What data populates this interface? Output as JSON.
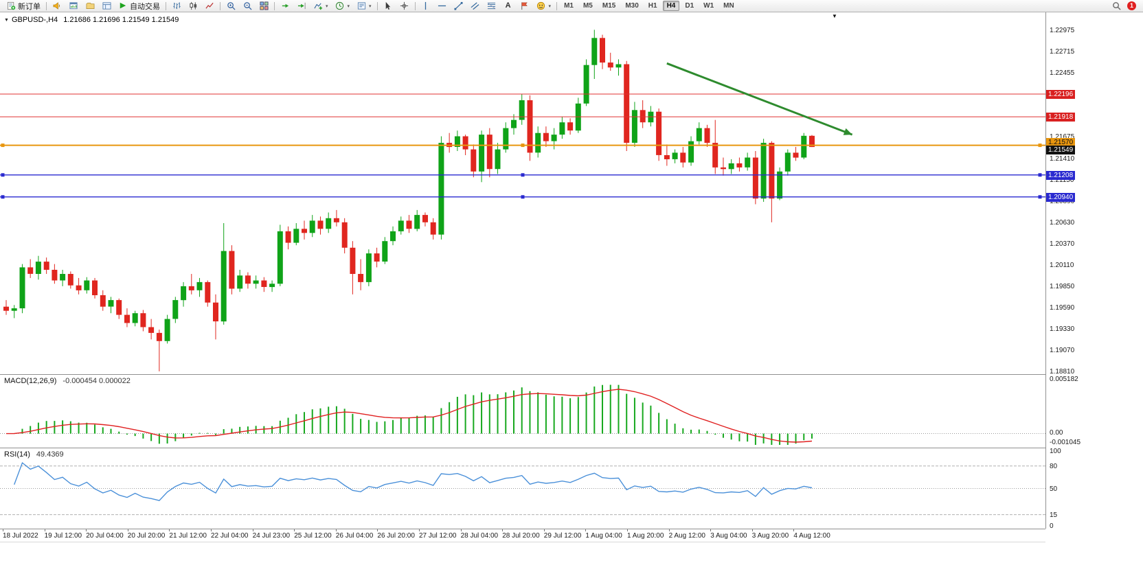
{
  "toolbar": {
    "new_order_label": "新订单",
    "auto_trading_label": "自动交易",
    "notification_count": "1",
    "timeframes": [
      "M1",
      "M5",
      "M15",
      "M30",
      "H1",
      "H4",
      "D1",
      "W1",
      "MN"
    ],
    "active_timeframe": "H4",
    "items": [
      {
        "type": "button",
        "name": "new-order-button",
        "icon": "new-order-icon",
        "label": "新订单"
      },
      {
        "type": "sep"
      },
      {
        "type": "button",
        "name": "news-button",
        "icon": "horn-icon"
      },
      {
        "type": "button",
        "name": "chart-window-button",
        "icon": "chart-window-icon"
      },
      {
        "type": "button",
        "name": "profiles-button",
        "icon": "profiles-icon"
      },
      {
        "type": "button",
        "name": "terminal-button",
        "icon": "terminal-icon"
      },
      {
        "type": "button",
        "name": "auto-trading-button",
        "icon": "play-icon",
        "label": "自动交易"
      },
      {
        "type": "sep"
      },
      {
        "type": "button",
        "name": "ohlc-bars-button",
        "icon": "ohlc-bars-icon"
      },
      {
        "type": "button",
        "name": "candlestick-button",
        "icon": "candles-icon"
      },
      {
        "type": "button",
        "name": "line-chart-button",
        "icon": "line-chart-icon"
      },
      {
        "type": "sep"
      },
      {
        "type": "button",
        "name": "zoom-in-button",
        "icon": "zoom-in-icon"
      },
      {
        "type": "button",
        "name": "zoom-out-button",
        "icon": "zoom-out-icon"
      },
      {
        "type": "button",
        "name": "tile-windows-button",
        "icon": "tile-windows-icon"
      },
      {
        "type": "sep"
      },
      {
        "type": "button",
        "name": "auto-scroll-button",
        "icon": "auto-scroll-icon"
      },
      {
        "type": "button",
        "name": "chart-shift-button",
        "icon": "chart-shift-icon"
      },
      {
        "type": "button",
        "name": "indicators-button",
        "icon": "indicators-icon",
        "dropdown": true
      },
      {
        "type": "button",
        "name": "periods-button",
        "icon": "clock-icon",
        "dropdown": true
      },
      {
        "type": "button",
        "name": "templates-button",
        "icon": "template-icon",
        "dropdown": true
      },
      {
        "type": "sep"
      },
      {
        "type": "button",
        "name": "cursor-button",
        "icon": "cursor-icon"
      },
      {
        "type": "button",
        "name": "crosshair-button",
        "icon": "crosshair-icon"
      },
      {
        "type": "sep"
      },
      {
        "type": "button",
        "name": "vertical-line-button",
        "icon": "vline-icon"
      },
      {
        "type": "button",
        "name": "horizontal-line-button",
        "icon": "hline-icon"
      },
      {
        "type": "button",
        "name": "trendline-button",
        "icon": "trendline-icon"
      },
      {
        "type": "button",
        "name": "channel-button",
        "icon": "channel-icon"
      },
      {
        "type": "button",
        "name": "fibonacci-button",
        "icon": "fibo-icon"
      },
      {
        "type": "button",
        "name": "text-button",
        "icon": "text-icon"
      },
      {
        "type": "button",
        "name": "label-button",
        "icon": "label-icon"
      },
      {
        "type": "button",
        "name": "shapes-button",
        "icon": "shapes-icon",
        "dropdown": true
      },
      {
        "type": "sep"
      }
    ]
  },
  "chart": {
    "title": "GBPUSD-,H4",
    "ohlc": "1.21686 1.21696 1.21549 1.21549",
    "price_axis": [
      "1.22975",
      "1.22715",
      "1.22455",
      "1.21675",
      "1.21410",
      "1.21150",
      "1.20890",
      "1.20630",
      "1.20370",
      "1.20110",
      "1.19850",
      "1.19590",
      "1.19330",
      "1.19070",
      "1.18810"
    ],
    "price_labels": [
      {
        "text": "1.22196",
        "price": 1.22196,
        "bg": "#d92020",
        "fg": "#ffffff",
        "dy": 0
      },
      {
        "text": "1.21918",
        "price": 1.21918,
        "bg": "#d92020",
        "fg": "#ffffff",
        "dy": 0
      },
      {
        "text": "1.21570",
        "price": 1.2157,
        "bg": "#e8960f",
        "fg": "#111111",
        "dy": -5
      },
      {
        "text": "1.21549",
        "price": 1.21549,
        "bg": "#111111",
        "fg": "#ffffff",
        "dy": 4
      },
      {
        "text": "1.21208",
        "price": 1.21208,
        "bg": "#2a2ad0",
        "fg": "#ffffff",
        "dy": 0
      },
      {
        "text": "1.20940",
        "price": 1.2094,
        "bg": "#2a2ad0",
        "fg": "#ffffff",
        "dy": 0
      }
    ]
  },
  "chart_data": {
    "type": "candlestick",
    "symbol": "GBPUSD-",
    "period": "H4",
    "y_range": [
      1.18776,
      1.23193
    ],
    "x0": 9,
    "bar_step": 11.73,
    "candles": [
      [
        1.196,
        1.1968,
        1.195,
        1.1955
      ],
      [
        1.1955,
        1.1962,
        1.1946,
        1.1958
      ],
      [
        1.1958,
        1.2012,
        1.1952,
        1.2008
      ],
      [
        1.2008,
        1.2018,
        1.1995,
        1.2
      ],
      [
        1.2,
        1.2022,
        1.1993,
        1.2015
      ],
      [
        1.2015,
        1.202,
        1.2,
        1.2005
      ],
      [
        1.2005,
        1.2012,
        1.1988,
        1.1992
      ],
      [
        1.1992,
        1.2005,
        1.1985,
        1.2
      ],
      [
        1.2,
        1.2003,
        1.1982,
        1.1986
      ],
      [
        1.1986,
        1.1995,
        1.1975,
        1.198
      ],
      [
        1.198,
        1.1996,
        1.1976,
        1.1992
      ],
      [
        1.1992,
        1.1995,
        1.197,
        1.1974
      ],
      [
        1.1974,
        1.198,
        1.1955,
        1.196
      ],
      [
        1.196,
        1.1972,
        1.1952,
        1.1968
      ],
      [
        1.1968,
        1.197,
        1.1945,
        1.195
      ],
      [
        1.195,
        1.1958,
        1.1935,
        1.194
      ],
      [
        1.194,
        1.1955,
        1.1936,
        1.1952
      ],
      [
        1.1952,
        1.1956,
        1.193,
        1.1935
      ],
      [
        1.1935,
        1.1945,
        1.192,
        1.1928
      ],
      [
        1.1928,
        1.1932,
        1.1881,
        1.1918
      ],
      [
        1.1918,
        1.195,
        1.1915,
        1.1945
      ],
      [
        1.1945,
        1.1972,
        1.194,
        1.1968
      ],
      [
        1.1968,
        1.199,
        1.196,
        1.1985
      ],
      [
        1.1985,
        1.2,
        1.1975,
        1.198
      ],
      [
        1.198,
        1.1995,
        1.1972,
        1.199
      ],
      [
        1.199,
        1.1992,
        1.196,
        1.1965
      ],
      [
        1.1965,
        1.1975,
        1.192,
        1.1942
      ],
      [
        1.1942,
        1.2062,
        1.1938,
        1.2028
      ],
      [
        1.2028,
        1.2035,
        1.1975,
        1.1982
      ],
      [
        1.1982,
        1.2005,
        1.1978,
        1.1998
      ],
      [
        1.1998,
        1.2002,
        1.1982,
        1.1988
      ],
      [
        1.1988,
        1.1998,
        1.1982,
        1.1992
      ],
      [
        1.1992,
        1.1996,
        1.1978,
        1.1984
      ],
      [
        1.1984,
        1.1992,
        1.1978,
        1.1988
      ],
      [
        1.1988,
        1.206,
        1.1985,
        1.2052
      ],
      [
        1.2052,
        1.2058,
        1.203,
        1.2038
      ],
      [
        1.2038,
        1.2062,
        1.2035,
        1.2055
      ],
      [
        1.2055,
        1.2065,
        1.2042,
        1.205
      ],
      [
        1.205,
        1.2072,
        1.2045,
        1.2065
      ],
      [
        1.2065,
        1.207,
        1.2048,
        1.2055
      ],
      [
        1.2055,
        1.2075,
        1.205,
        1.2068
      ],
      [
        1.2068,
        1.2078,
        1.2058,
        1.2063
      ],
      [
        1.2063,
        1.2068,
        1.2025,
        1.2032
      ],
      [
        1.2032,
        1.204,
        1.1975,
        1.2
      ],
      [
        1.2,
        1.2018,
        1.198,
        1.199
      ],
      [
        1.199,
        1.203,
        1.1985,
        1.2025
      ],
      [
        1.2025,
        1.2032,
        1.2008,
        1.2015
      ],
      [
        1.2015,
        1.2045,
        1.2012,
        1.204
      ],
      [
        1.204,
        1.2058,
        1.2035,
        1.2052
      ],
      [
        1.2052,
        1.207,
        1.2048,
        1.2065
      ],
      [
        1.2065,
        1.2072,
        1.205,
        1.2055
      ],
      [
        1.2055,
        1.2078,
        1.2052,
        1.2072
      ],
      [
        1.2072,
        1.2075,
        1.2058,
        1.2063
      ],
      [
        1.2063,
        1.2068,
        1.2042,
        1.2048
      ],
      [
        1.2048,
        1.2168,
        1.2042,
        1.216
      ],
      [
        1.216,
        1.2172,
        1.2148,
        1.2155
      ],
      [
        1.2155,
        1.2175,
        1.215,
        1.2168
      ],
      [
        1.2168,
        1.217,
        1.2145,
        1.2152
      ],
      [
        1.2152,
        1.2158,
        1.2118,
        1.2125
      ],
      [
        1.2125,
        1.2175,
        1.2112,
        1.217
      ],
      [
        1.217,
        1.2178,
        1.2118,
        1.2128
      ],
      [
        1.2128,
        1.216,
        1.2122,
        1.2152
      ],
      [
        1.2152,
        1.2185,
        1.2148,
        1.2178
      ],
      [
        1.2178,
        1.2195,
        1.217,
        1.2188
      ],
      [
        1.2188,
        1.222,
        1.2182,
        1.2212
      ],
      [
        1.2212,
        1.2218,
        1.2138,
        1.2148
      ],
      [
        1.2148,
        1.218,
        1.2142,
        1.2172
      ],
      [
        1.2172,
        1.218,
        1.2155,
        1.2162
      ],
      [
        1.2162,
        1.2178,
        1.2152,
        1.217
      ],
      [
        1.217,
        1.2192,
        1.2165,
        1.2185
      ],
      [
        1.2185,
        1.219,
        1.217,
        1.2175
      ],
      [
        1.2175,
        1.2215,
        1.2172,
        1.2208
      ],
      [
        1.2208,
        1.2262,
        1.2205,
        1.2255
      ],
      [
        1.2255,
        1.2298,
        1.2238,
        1.2288
      ],
      [
        1.2288,
        1.2292,
        1.225,
        1.2258
      ],
      [
        1.2258,
        1.227,
        1.2248,
        1.2252
      ],
      [
        1.2252,
        1.2262,
        1.2242,
        1.2256
      ],
      [
        1.2256,
        1.226,
        1.215,
        1.216
      ],
      [
        1.216,
        1.221,
        1.2155,
        1.22
      ],
      [
        1.22,
        1.2212,
        1.2178,
        1.2185
      ],
      [
        1.2185,
        1.2205,
        1.218,
        1.2198
      ],
      [
        1.2198,
        1.2202,
        1.2138,
        1.2145
      ],
      [
        1.2145,
        1.2158,
        1.2132,
        1.214
      ],
      [
        1.214,
        1.2152,
        1.2135,
        1.2148
      ],
      [
        1.2148,
        1.2155,
        1.213,
        1.2136
      ],
      [
        1.2136,
        1.2168,
        1.2132,
        1.2162
      ],
      [
        1.2162,
        1.2185,
        1.2158,
        1.2178
      ],
      [
        1.2178,
        1.2182,
        1.2155,
        1.216
      ],
      [
        1.216,
        1.2188,
        1.2122,
        1.213
      ],
      [
        1.213,
        1.2142,
        1.212,
        1.2128
      ],
      [
        1.2128,
        1.214,
        1.2122,
        1.2135
      ],
      [
        1.2135,
        1.2142,
        1.2125,
        1.213
      ],
      [
        1.213,
        1.2148,
        1.2126,
        1.2142
      ],
      [
        1.2142,
        1.215,
        1.2085,
        1.2092
      ],
      [
        1.2092,
        1.2165,
        1.2088,
        1.216
      ],
      [
        1.216,
        1.2162,
        1.2063,
        1.2092
      ],
      [
        1.2092,
        1.213,
        1.209,
        1.2125
      ],
      [
        1.2125,
        1.2152,
        1.212,
        1.2148
      ],
      [
        1.2148,
        1.2155,
        1.2138,
        1.2142
      ],
      [
        1.2142,
        1.2172,
        1.214,
        1.21686
      ],
      [
        1.21686,
        1.21696,
        1.21549,
        1.21549
      ]
    ],
    "hlines": [
      {
        "price": 1.22196,
        "color": "red_line",
        "w": 1
      },
      {
        "price": 1.21918,
        "color": "red_line",
        "w": 1
      },
      {
        "price": 1.2157,
        "color": "orange_line",
        "w": 2,
        "handles": true
      },
      {
        "price": 1.21208,
        "color": "blue_line",
        "w": 1.4,
        "handles": true
      },
      {
        "price": 1.2094,
        "color": "blue_line",
        "w": 1.4,
        "handles": true
      }
    ],
    "trend_arrow": {
      "from_bar": 82,
      "from_price": 1.2257,
      "to_bar": 105,
      "to_price": 1.217
    }
  },
  "macd": {
    "label": "MACD(12,26,9)",
    "values": "-0.000454 0.000022",
    "axis": [
      "0.005182",
      "0.00",
      "-0.001045"
    ],
    "range": [
      -0.001045,
      0.005182
    ],
    "params": {
      "fast": 12,
      "slow": 26,
      "signal": 9
    }
  },
  "rsi": {
    "label": "RSI(14)",
    "value": "49.4369",
    "axis": [
      "100",
      "80",
      "50",
      "15",
      "0"
    ],
    "levels": [
      80,
      50,
      15
    ],
    "period": 14
  },
  "time_axis": {
    "x0": 4,
    "step": 60.6,
    "labels": [
      "18 Jul 2022",
      "19 Jul 12:00",
      "20 Jul 04:00",
      "20 Jul 20:00",
      "21 Jul 12:00",
      "22 Jul 04:00",
      "24 Jul 23:00",
      "25 Jul 12:00",
      "26 Jul 04:00",
      "26 Jul 20:00",
      "27 Jul 12:00",
      "28 Jul 04:00",
      "28 Jul 20:00",
      "29 Jul 12:00",
      "1 Aug 04:00",
      "1 Aug 20:00",
      "2 Aug 12:00",
      "3 Aug 04:00",
      "3 Aug 20:00",
      "4 Aug 12:00"
    ]
  },
  "colors": {
    "up": "#0fa318",
    "down": "#e0261f",
    "macd_hist": "#17a81e",
    "macd_signal": "#e02020",
    "rsi_line": "#4a90d9",
    "arrow": "#2e8b2e",
    "red_line": "#e03232",
    "orange_line": "#e8960f",
    "blue_line": "#2a2ad0"
  }
}
